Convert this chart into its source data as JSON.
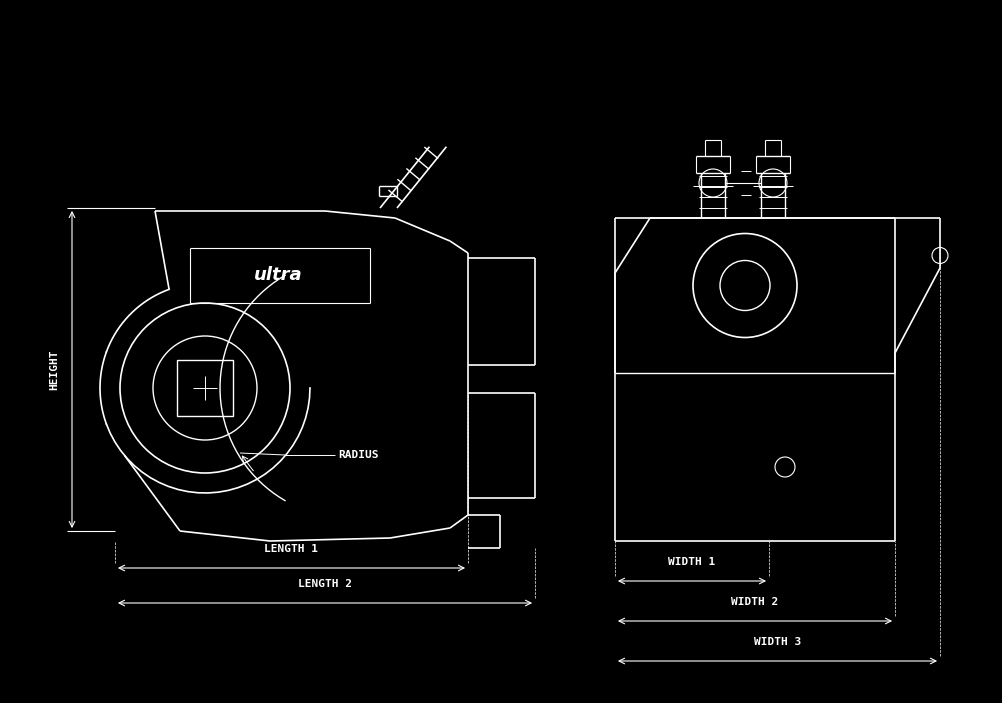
{
  "bg_color": "#000000",
  "line_color": "#ffffff",
  "dim_color": "#ffffff",
  "text_color": "#ffffff",
  "fig_width": 10.03,
  "fig_height": 7.03,
  "dpi": 100,
  "font_family": "monospace",
  "font_size": 8,
  "labels": {
    "height": "HEIGHT",
    "radius": "RADIUS",
    "length1": "LENGTH 1",
    "length2": "LENGTH 2",
    "width1": "WIDTH 1",
    "width2": "WIDTH 2",
    "width3": "WIDTH 3"
  }
}
